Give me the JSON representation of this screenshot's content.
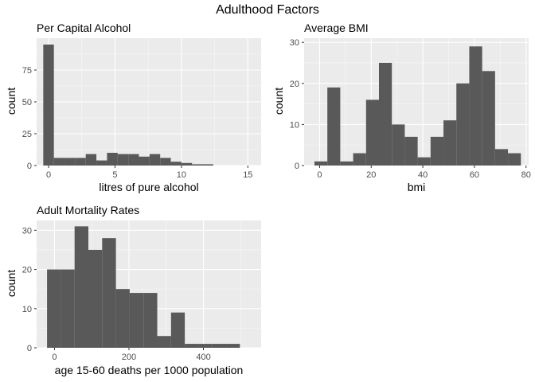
{
  "figure": {
    "title": "Adulthood Factors"
  },
  "chart_data": [
    {
      "type": "bar",
      "subtype": "histogram",
      "title": "Per Capital Alcohol",
      "xlabel": "litres of pure alcohol",
      "ylabel": "count",
      "bin_start": -0.4,
      "bin_width": 0.8,
      "counts": [
        95,
        6,
        6,
        6,
        9,
        4,
        10,
        9,
        9,
        7,
        9,
        6,
        3,
        2,
        1,
        1
      ],
      "xlim": [
        -0.9,
        16.0
      ],
      "ylim": [
        0,
        100
      ],
      "xticks": [
        0,
        5,
        10,
        15
      ],
      "xtick_labels": [
        "0",
        "5",
        "10",
        "15"
      ],
      "yticks": [
        0,
        25,
        50,
        75
      ],
      "ytick_labels": [
        "0",
        "25",
        "50",
        "75"
      ],
      "grid": true,
      "bar_color": "#595959",
      "panel_color": "#ebebeb"
    },
    {
      "type": "bar",
      "subtype": "histogram",
      "title": "Average BMI",
      "xlabel": "bmi",
      "ylabel": "count",
      "bin_start": -2.0,
      "bin_width": 5.0,
      "counts": [
        1,
        19,
        1,
        3,
        16,
        25,
        10,
        7,
        2,
        7,
        11,
        20,
        29,
        23,
        4,
        3
      ],
      "xlim": [
        -6.0,
        81.0
      ],
      "ylim": [
        0,
        31
      ],
      "xticks": [
        0,
        20,
        40,
        60,
        80
      ],
      "xtick_labels": [
        "0",
        "20",
        "40",
        "60",
        "80"
      ],
      "yticks": [
        0,
        10,
        20,
        30
      ],
      "ytick_labels": [
        "0",
        "10",
        "20",
        "30"
      ],
      "grid": true,
      "bar_color": "#595959",
      "panel_color": "#ebebeb"
    },
    {
      "type": "bar",
      "subtype": "histogram",
      "title": "Adult Mortality Rates",
      "xlabel": "age 15-60 deaths per 1000 population",
      "ylabel": "count",
      "bin_start": -20.0,
      "bin_width": 37.0,
      "counts": [
        20,
        20,
        31,
        25,
        28,
        15,
        14,
        14,
        3,
        9,
        1,
        1,
        1,
        1
      ],
      "xlim": [
        -48.0,
        555.0
      ],
      "ylim": [
        0,
        32.5
      ],
      "xticks": [
        0,
        200,
        400
      ],
      "xtick_labels": [
        "0",
        "200",
        "400"
      ],
      "yticks": [
        0,
        10,
        20,
        30
      ],
      "ytick_labels": [
        "0",
        "10",
        "20",
        "30"
      ],
      "grid": true,
      "bar_color": "#595959",
      "panel_color": "#ebebeb"
    }
  ]
}
